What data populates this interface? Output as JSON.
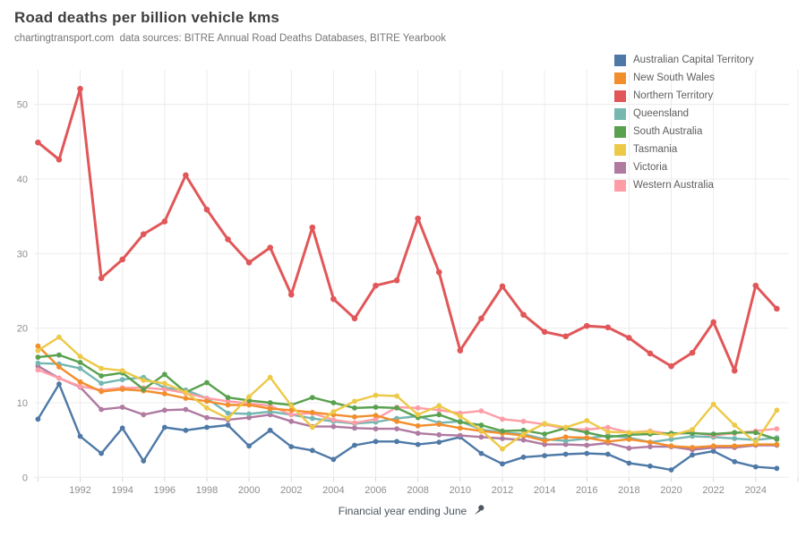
{
  "header": {
    "title": "Road deaths per billion vehicle kms",
    "subtitle": "chartingtransport.com  data sources: BITRE Annual Road Deaths Databases, BITRE Yearbook"
  },
  "legend": {
    "items": [
      {
        "label": "Australian Capital Territory",
        "color": "#4e79a7"
      },
      {
        "label": "New South Wales",
        "color": "#f28e2b"
      },
      {
        "label": "Northern Territory",
        "color": "#e15759"
      },
      {
        "label": "Queensland",
        "color": "#76b7b2"
      },
      {
        "label": "South Australia",
        "color": "#59a14f"
      },
      {
        "label": "Tasmania",
        "color": "#edc948"
      },
      {
        "label": "Victoria",
        "color": "#b07aa1"
      },
      {
        "label": "Western Australia",
        "color": "#ff9da7"
      }
    ]
  },
  "axes": {
    "x_title": "Financial year ending June",
    "y_ticks": [
      0,
      10,
      20,
      30,
      40,
      50
    ],
    "x_ticks": [
      1992,
      1994,
      1996,
      1998,
      2000,
      2002,
      2004,
      2006,
      2008,
      2010,
      2012,
      2014,
      2016,
      2018,
      2020,
      2022,
      2024
    ]
  },
  "chart_data": {
    "type": "line",
    "title": "Road deaths per billion vehicle kms",
    "xlabel": "Financial year ending June",
    "ylabel": "",
    "xlim": [
      1990,
      2025
    ],
    "ylim": [
      0,
      54.6
    ],
    "grid": true,
    "legend_position": "top-right",
    "x": [
      1990,
      1991,
      1992,
      1993,
      1994,
      1995,
      1996,
      1997,
      1998,
      1999,
      2000,
      2001,
      2002,
      2003,
      2004,
      2005,
      2006,
      2007,
      2008,
      2009,
      2010,
      2011,
      2012,
      2013,
      2014,
      2015,
      2016,
      2017,
      2018,
      2019,
      2020,
      2021,
      2022,
      2023,
      2024,
      2025
    ],
    "series": [
      {
        "name": "Australian Capital Territory",
        "color": "#4e79a7",
        "values": [
          7.8,
          12.5,
          5.5,
          3.2,
          6.6,
          2.2,
          6.7,
          6.3,
          6.7,
          7.0,
          4.2,
          6.3,
          4.1,
          3.6,
          2.4,
          4.3,
          4.8,
          4.8,
          4.4,
          4.7,
          5.4,
          3.2,
          1.8,
          2.7,
          2.9,
          3.1,
          3.2,
          3.1,
          1.9,
          1.5,
          1.0,
          3.0,
          3.5,
          2.1,
          1.4,
          1.2
        ]
      },
      {
        "name": "New South Wales",
        "color": "#f28e2b",
        "values": [
          17.6,
          14.8,
          12.8,
          11.5,
          11.8,
          11.6,
          11.2,
          10.6,
          10.2,
          9.7,
          9.7,
          9.2,
          9.0,
          8.7,
          8.4,
          8.1,
          8.3,
          7.5,
          6.9,
          7.1,
          6.6,
          6.2,
          5.9,
          5.6,
          4.9,
          5.4,
          5.3,
          4.8,
          5.1,
          4.7,
          4.2,
          4.0,
          4.2,
          4.2,
          4.4,
          4.4
        ]
      },
      {
        "name": "Northern Territory",
        "color": "#e15759",
        "values": [
          44.9,
          42.6,
          52.1,
          26.7,
          29.2,
          32.6,
          34.3,
          40.5,
          35.9,
          31.9,
          28.8,
          30.8,
          24.5,
          33.5,
          23.9,
          21.3,
          25.7,
          26.4,
          34.7,
          27.5,
          17.0,
          21.3,
          25.6,
          21.8,
          19.5,
          18.9,
          20.3,
          20.1,
          18.7,
          16.6,
          14.9,
          16.7,
          20.8,
          14.3,
          25.7,
          22.6
        ]
      },
      {
        "name": "Queensland",
        "color": "#76b7b2",
        "values": [
          15.3,
          15.2,
          14.6,
          12.6,
          13.1,
          13.4,
          12.0,
          11.7,
          10.6,
          8.6,
          8.5,
          8.8,
          8.4,
          7.9,
          7.5,
          7.2,
          7.4,
          7.9,
          8.2,
          7.3,
          7.5,
          6.4,
          6.0,
          5.8,
          5.1,
          4.9,
          5.2,
          5.6,
          5.3,
          4.7,
          5.1,
          5.5,
          5.4,
          5.2,
          5.0,
          5.3
        ]
      },
      {
        "name": "South Australia",
        "color": "#59a14f",
        "values": [
          16.1,
          16.4,
          15.4,
          13.6,
          14.0,
          11.8,
          13.8,
          11.4,
          12.7,
          10.7,
          10.3,
          10.0,
          9.7,
          10.7,
          10.0,
          9.3,
          9.4,
          9.3,
          8.0,
          8.4,
          7.4,
          7.0,
          6.2,
          6.3,
          5.8,
          6.6,
          6.0,
          5.4,
          5.7,
          5.8,
          5.9,
          5.9,
          5.8,
          6.0,
          6.0,
          5.1
        ]
      },
      {
        "name": "Tasmania",
        "color": "#edc948",
        "values": [
          17.0,
          18.8,
          16.2,
          14.6,
          14.3,
          13.0,
          12.6,
          11.4,
          9.3,
          7.9,
          10.8,
          13.4,
          9.6,
          6.7,
          8.8,
          10.2,
          11.0,
          10.9,
          8.4,
          9.6,
          8.2,
          6.3,
          3.8,
          5.8,
          7.2,
          6.7,
          7.6,
          6.1,
          6.0,
          6.1,
          5.6,
          6.4,
          9.8,
          7.0,
          4.7,
          9.0
        ]
      },
      {
        "name": "Victoria",
        "color": "#b07aa1",
        "values": [
          14.9,
          13.3,
          12.1,
          9.1,
          9.4,
          8.4,
          9.0,
          9.1,
          8.0,
          7.7,
          8.0,
          8.4,
          7.5,
          6.8,
          6.8,
          6.6,
          6.5,
          6.5,
          5.9,
          5.7,
          5.6,
          5.4,
          5.2,
          5.0,
          4.4,
          4.4,
          4.3,
          4.6,
          3.9,
          4.1,
          4.1,
          3.7,
          4.0,
          4.0,
          4.3,
          4.3
        ]
      },
      {
        "name": "Western Australia",
        "color": "#ff9da7",
        "values": [
          14.4,
          13.3,
          12.2,
          11.7,
          12.0,
          12.0,
          11.8,
          11.3,
          10.6,
          10.2,
          9.9,
          9.6,
          8.4,
          8.6,
          7.7,
          7.3,
          7.8,
          9.4,
          9.3,
          9.0,
          8.6,
          8.9,
          7.8,
          7.5,
          7.1,
          6.5,
          6.4,
          6.7,
          6.0,
          6.2,
          5.8,
          6.0,
          5.6,
          5.9,
          6.2,
          6.5
        ]
      }
    ]
  }
}
